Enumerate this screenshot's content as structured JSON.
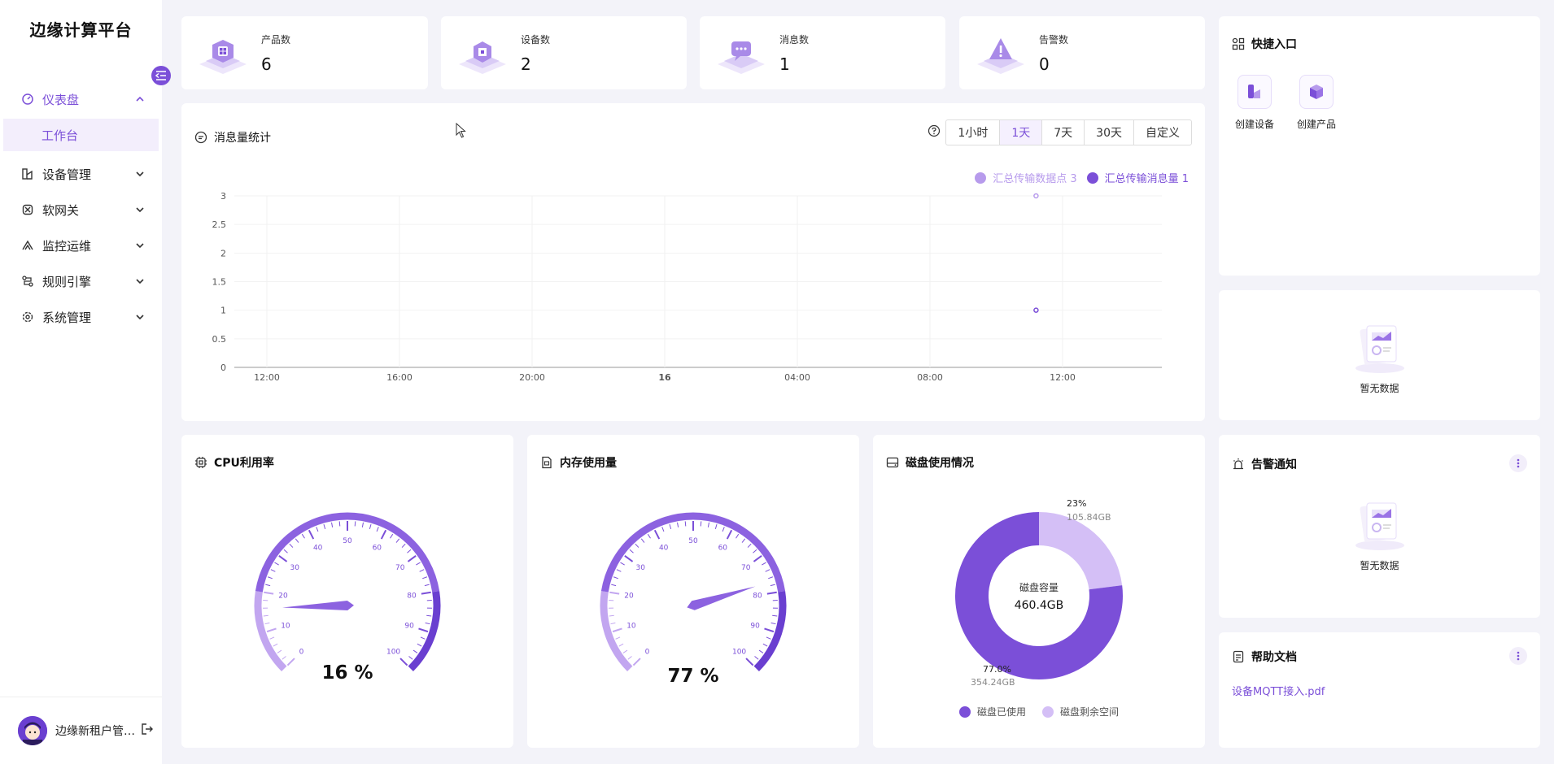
{
  "app": {
    "title": "边缘计算平台"
  },
  "sidebar": {
    "items": [
      {
        "label": "仪表盘",
        "icon": "dashboard-icon",
        "active": true
      },
      {
        "label": "设备管理",
        "icon": "device-icon"
      },
      {
        "label": "软网关",
        "icon": "gateway-icon"
      },
      {
        "label": "监控运维",
        "icon": "monitor-icon"
      },
      {
        "label": "规则引擎",
        "icon": "rule-icon"
      },
      {
        "label": "系统管理",
        "icon": "settings-icon"
      }
    ],
    "sub_item": "工作台",
    "user_name": "边缘新租户管…"
  },
  "stats": [
    {
      "label": "产品数",
      "value": "6"
    },
    {
      "label": "设备数",
      "value": "2"
    },
    {
      "label": "消息数",
      "value": "1"
    },
    {
      "label": "告警数",
      "value": "0"
    }
  ],
  "message_chart": {
    "title": "消息量统计",
    "ranges": [
      "1小时",
      "1天",
      "7天",
      "30天",
      "自定义"
    ],
    "selected_range": "1天"
  },
  "chart_data": [
    {
      "type": "scatter",
      "x_ticks": [
        "12:00",
        "16:00",
        "20:00",
        "16",
        "04:00",
        "08:00",
        "12:00"
      ],
      "y_ticks": [
        0,
        0.5,
        1,
        1.5,
        2,
        2.5,
        3
      ],
      "ylim": [
        0,
        3
      ],
      "series": [
        {
          "name": "汇总传输数据点",
          "legend_label": "汇总传输数据点 3",
          "color": "#b79bec",
          "points": [
            {
              "x_index": 5.8,
              "y": 3
            }
          ]
        },
        {
          "name": "汇总传输消息量",
          "legend_label": "汇总传输消息量 1",
          "color": "#7b4fd8",
          "points": [
            {
              "x_index": 5.8,
              "y": 1
            }
          ]
        }
      ]
    },
    {
      "type": "gauge",
      "title": "CPU利用率",
      "value": 16,
      "unit": "%",
      "ticks": [
        0,
        10,
        20,
        30,
        40,
        50,
        60,
        70,
        80,
        90,
        100
      ]
    },
    {
      "type": "gauge",
      "title": "内存使用量",
      "value": 77,
      "unit": "%",
      "ticks": [
        0,
        10,
        20,
        30,
        40,
        50,
        60,
        70,
        80,
        90,
        100
      ]
    },
    {
      "type": "pie",
      "title": "磁盘使用情况",
      "center_label": "磁盘容量",
      "center_value": "460.4GB",
      "slices": [
        {
          "name": "磁盘已使用",
          "percent": 77.0,
          "percent_label": "77.0%",
          "size": "354.24GB",
          "color": "#7b4fd8"
        },
        {
          "name": "磁盘剩余空间",
          "percent": 23.0,
          "percent_label": "23%",
          "size": "105.84GB",
          "color": "#d4bff6"
        }
      ]
    }
  ],
  "quick": {
    "title": "快捷入口",
    "items": [
      {
        "label": "创建设备"
      },
      {
        "label": "创建产品"
      }
    ]
  },
  "empty_text": "暂无数据",
  "alerts": {
    "title": "告警通知"
  },
  "help": {
    "title": "帮助文档",
    "link": "设备MQTT接入.pdf"
  },
  "colors": {
    "accent": "#7b4fd8",
    "accent_light": "#b79bec"
  }
}
